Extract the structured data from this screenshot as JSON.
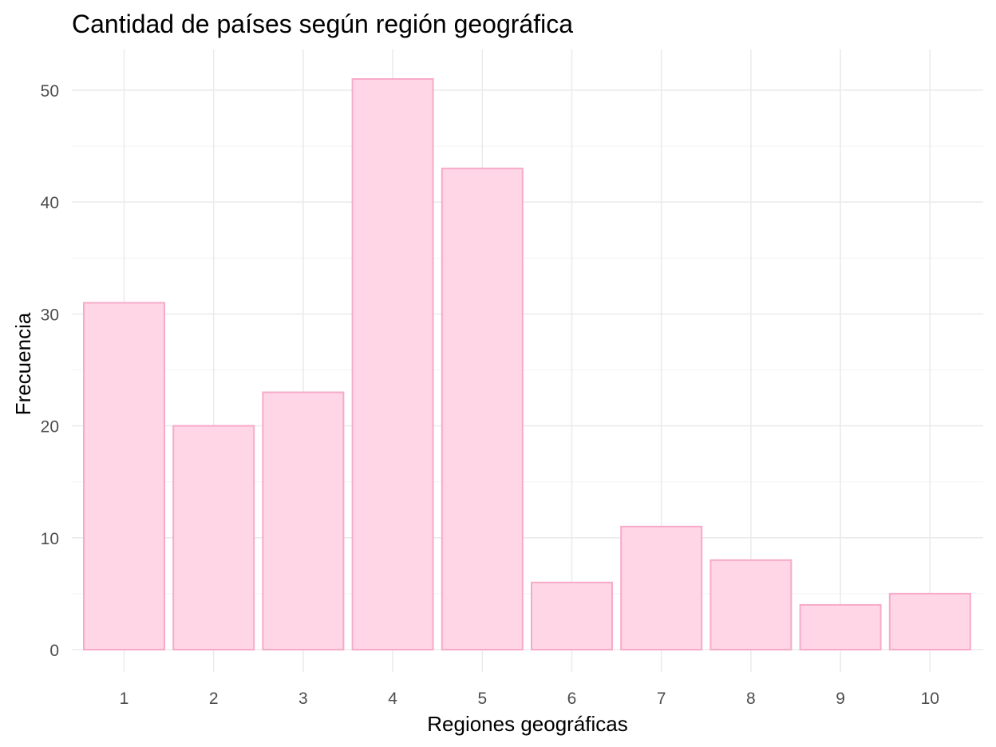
{
  "chart_data": {
    "type": "bar",
    "title": "Cantidad de países según región geográfica",
    "xlabel": "Regiones geográficas",
    "ylabel": "Frecuencia",
    "categories": [
      "1",
      "2",
      "3",
      "4",
      "5",
      "6",
      "7",
      "8",
      "9",
      "10"
    ],
    "values": [
      31,
      20,
      23,
      51,
      43,
      6,
      11,
      8,
      4,
      5
    ],
    "ylim": [
      0,
      53.5
    ],
    "yticks": [
      0,
      10,
      20,
      30,
      40,
      50
    ],
    "grid": true,
    "legend": "none",
    "colors": {
      "bar_fill": "#ffd6e6",
      "bar_stroke": "#f7aac8",
      "grid": "#ebebeb"
    }
  }
}
